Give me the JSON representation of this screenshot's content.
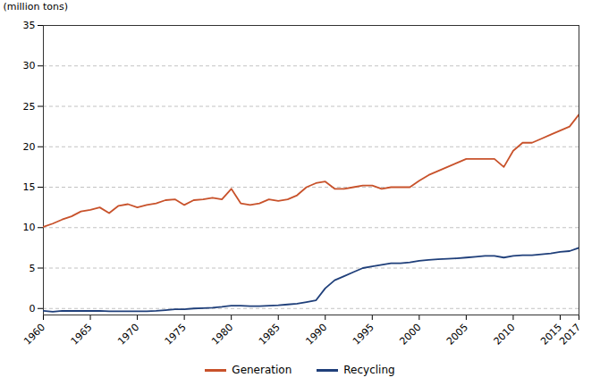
{
  "chart_data": {
    "type": "line",
    "y_label": "(million tons)",
    "x": [
      1960,
      1961,
      1962,
      1963,
      1964,
      1965,
      1966,
      1967,
      1968,
      1969,
      1970,
      1971,
      1972,
      1973,
      1974,
      1975,
      1976,
      1977,
      1978,
      1979,
      1980,
      1981,
      1982,
      1983,
      1984,
      1985,
      1986,
      1987,
      1988,
      1989,
      1990,
      1991,
      1992,
      1993,
      1994,
      1995,
      1996,
      1997,
      1998,
      1999,
      2000,
      2001,
      2002,
      2003,
      2004,
      2005,
      2006,
      2007,
      2008,
      2009,
      2010,
      2011,
      2012,
      2013,
      2014,
      2015,
      2016,
      2017
    ],
    "series": [
      {
        "name": "Generation",
        "color": "#C8522B",
        "values": [
          10.1,
          10.5,
          11.0,
          11.4,
          12.0,
          12.2,
          12.5,
          11.8,
          12.7,
          12.9,
          12.5,
          12.8,
          13.0,
          13.4,
          13.5,
          12.8,
          13.4,
          13.5,
          13.7,
          13.5,
          14.8,
          13.0,
          12.8,
          13.0,
          13.5,
          13.3,
          13.5,
          14.0,
          15.0,
          15.5,
          15.7,
          14.8,
          14.8,
          15.0,
          15.2,
          15.2,
          14.8,
          15.0,
          15.0,
          15.0,
          15.8,
          16.5,
          17.0,
          17.5,
          18.0,
          18.5,
          18.5,
          18.5,
          18.5,
          17.5,
          19.5,
          20.5,
          20.5,
          21.0,
          21.5,
          22.0,
          22.5,
          24.0
        ]
      },
      {
        "name": "Recycling",
        "color": "#1F3F7A",
        "values": [
          -0.3,
          -0.4,
          -0.3,
          -0.3,
          -0.3,
          -0.3,
          -0.3,
          -0.35,
          -0.35,
          -0.35,
          -0.35,
          -0.35,
          -0.3,
          -0.2,
          -0.1,
          -0.1,
          0.0,
          0.05,
          0.1,
          0.2,
          0.35,
          0.35,
          0.3,
          0.3,
          0.35,
          0.4,
          0.5,
          0.6,
          0.8,
          1.0,
          2.5,
          3.5,
          4.0,
          4.5,
          5.0,
          5.2,
          5.4,
          5.6,
          5.6,
          5.7,
          5.9,
          6.0,
          6.1,
          6.15,
          6.2,
          6.3,
          6.4,
          6.5,
          6.5,
          6.3,
          6.5,
          6.6,
          6.6,
          6.7,
          6.8,
          7.0,
          7.1,
          7.5
        ]
      }
    ],
    "xlim": [
      1960,
      2017
    ],
    "xticks": [
      1960,
      1965,
      1970,
      1975,
      1980,
      1985,
      1990,
      1995,
      2000,
      2005,
      2010,
      2015,
      2017
    ],
    "ylim": [
      -0.8,
      35
    ],
    "yticks": [
      0,
      5,
      10,
      15,
      20,
      25,
      30,
      35
    ],
    "grid": true,
    "legend": "bottom"
  }
}
